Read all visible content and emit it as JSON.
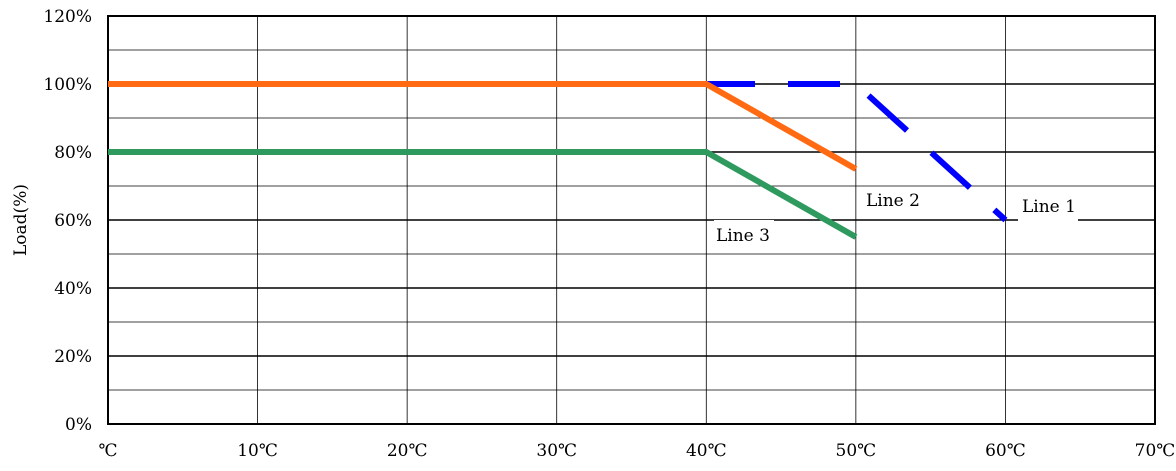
{
  "chart_data": {
    "type": "line",
    "title": "",
    "xlabel": "",
    "ylabel": "Load(%)",
    "xlim": [
      0,
      70
    ],
    "ylim": [
      0,
      120
    ],
    "xticks": [
      0,
      10,
      20,
      30,
      40,
      50,
      60,
      70
    ],
    "xtick_labels": [
      "℃",
      "10℃",
      "20℃",
      "30℃",
      "40℃",
      "50℃",
      "60℃",
      "70℃"
    ],
    "yticks": [
      0,
      20,
      40,
      60,
      80,
      100,
      120
    ],
    "ytick_labels": [
      "0%",
      "20%",
      "40%",
      "60%",
      "80%",
      "100%",
      "120%"
    ],
    "grid": true,
    "series": [
      {
        "name": "Line 1",
        "color": "#0000ff",
        "style": "dashed",
        "x": [
          0,
          40,
          50,
          60
        ],
        "y": [
          100,
          100,
          100,
          60
        ]
      },
      {
        "name": "Line 2",
        "color": "#ff6a13",
        "style": "solid",
        "x": [
          0,
          40,
          50
        ],
        "y": [
          100,
          100,
          75
        ]
      },
      {
        "name": "Line 3",
        "color": "#2e9a5e",
        "style": "solid",
        "x": [
          0,
          40,
          50
        ],
        "y": [
          80,
          80,
          55
        ]
      }
    ],
    "annotations": [
      {
        "text": "Line 1",
        "series": "Line 1"
      },
      {
        "text": "Line 2",
        "series": "Line 2"
      },
      {
        "text": "Line 3",
        "series": "Line 3"
      }
    ]
  }
}
